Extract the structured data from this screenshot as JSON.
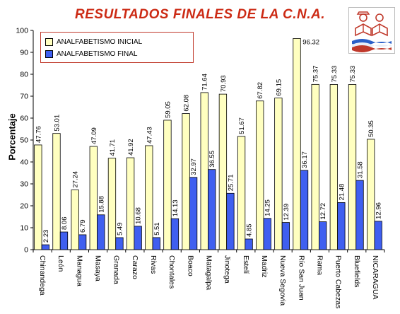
{
  "title": "RESULTADOS FINALES DE LA C.N.A.",
  "colors": {
    "title": "#cc2a14",
    "initial_bar": "#ffffc0",
    "final_bar": "#3f5ff0",
    "legend_border": "#c0392b"
  },
  "chart_data": {
    "type": "bar",
    "title": "RESULTADOS FINALES DE LA C.N.A.",
    "xlabel": "",
    "ylabel": "Porcentaje",
    "ylim": [
      0,
      100
    ],
    "yticks": [
      0,
      10,
      20,
      30,
      40,
      50,
      60,
      70,
      80,
      90,
      100
    ],
    "grid": false,
    "legend_position": "top-left",
    "categories": [
      "Chinandega",
      "León",
      "Managua",
      "Masaya",
      "Granada",
      "Carazo",
      "Rivas",
      "Chontales",
      "Boaco",
      "Matagalpa",
      "Jinotega",
      "Estelí",
      "Madriz",
      "Nueva Segovia",
      "Río San Juan",
      "Rama",
      "Puerto Cabezas",
      "Bluefields",
      "NICARAGUA"
    ],
    "series": [
      {
        "name": "ANALFABETISMO INICIAL",
        "values": [
          47.76,
          53.01,
          27.24,
          47.09,
          41.71,
          41.92,
          47.43,
          59.05,
          62.08,
          71.64,
          70.93,
          51.67,
          67.82,
          69.15,
          96.32,
          75.37,
          75.33,
          75.33,
          50.35
        ],
        "labels": [
          "47.76",
          "53.01",
          "27.24",
          "47.09",
          "41.71",
          "41.92",
          "47.43",
          "59.05",
          "62.08",
          "71.64",
          "70.93",
          "51.67",
          "67.82",
          "69.15",
          "96.32",
          "75.37",
          "75.33",
          "75.33",
          "50.35"
        ]
      },
      {
        "name": "ANALFABETISMO FINAL",
        "values": [
          2.23,
          8.06,
          6.79,
          15.88,
          5.49,
          10.68,
          5.51,
          14.13,
          32.97,
          36.55,
          25.71,
          4.85,
          14.25,
          12.39,
          36.17,
          12.72,
          21.48,
          31.58,
          12.96
        ],
        "labels": [
          "2.23",
          "8.06",
          "6.79",
          "15.88",
          "5.49",
          "10.68",
          "5.51",
          "14.13",
          "32.97",
          "36.55",
          "25.71",
          "4.85",
          "14.25",
          "12.39",
          "36.17",
          "12.72",
          "21.48",
          "31.58",
          "12.96"
        ]
      }
    ]
  }
}
